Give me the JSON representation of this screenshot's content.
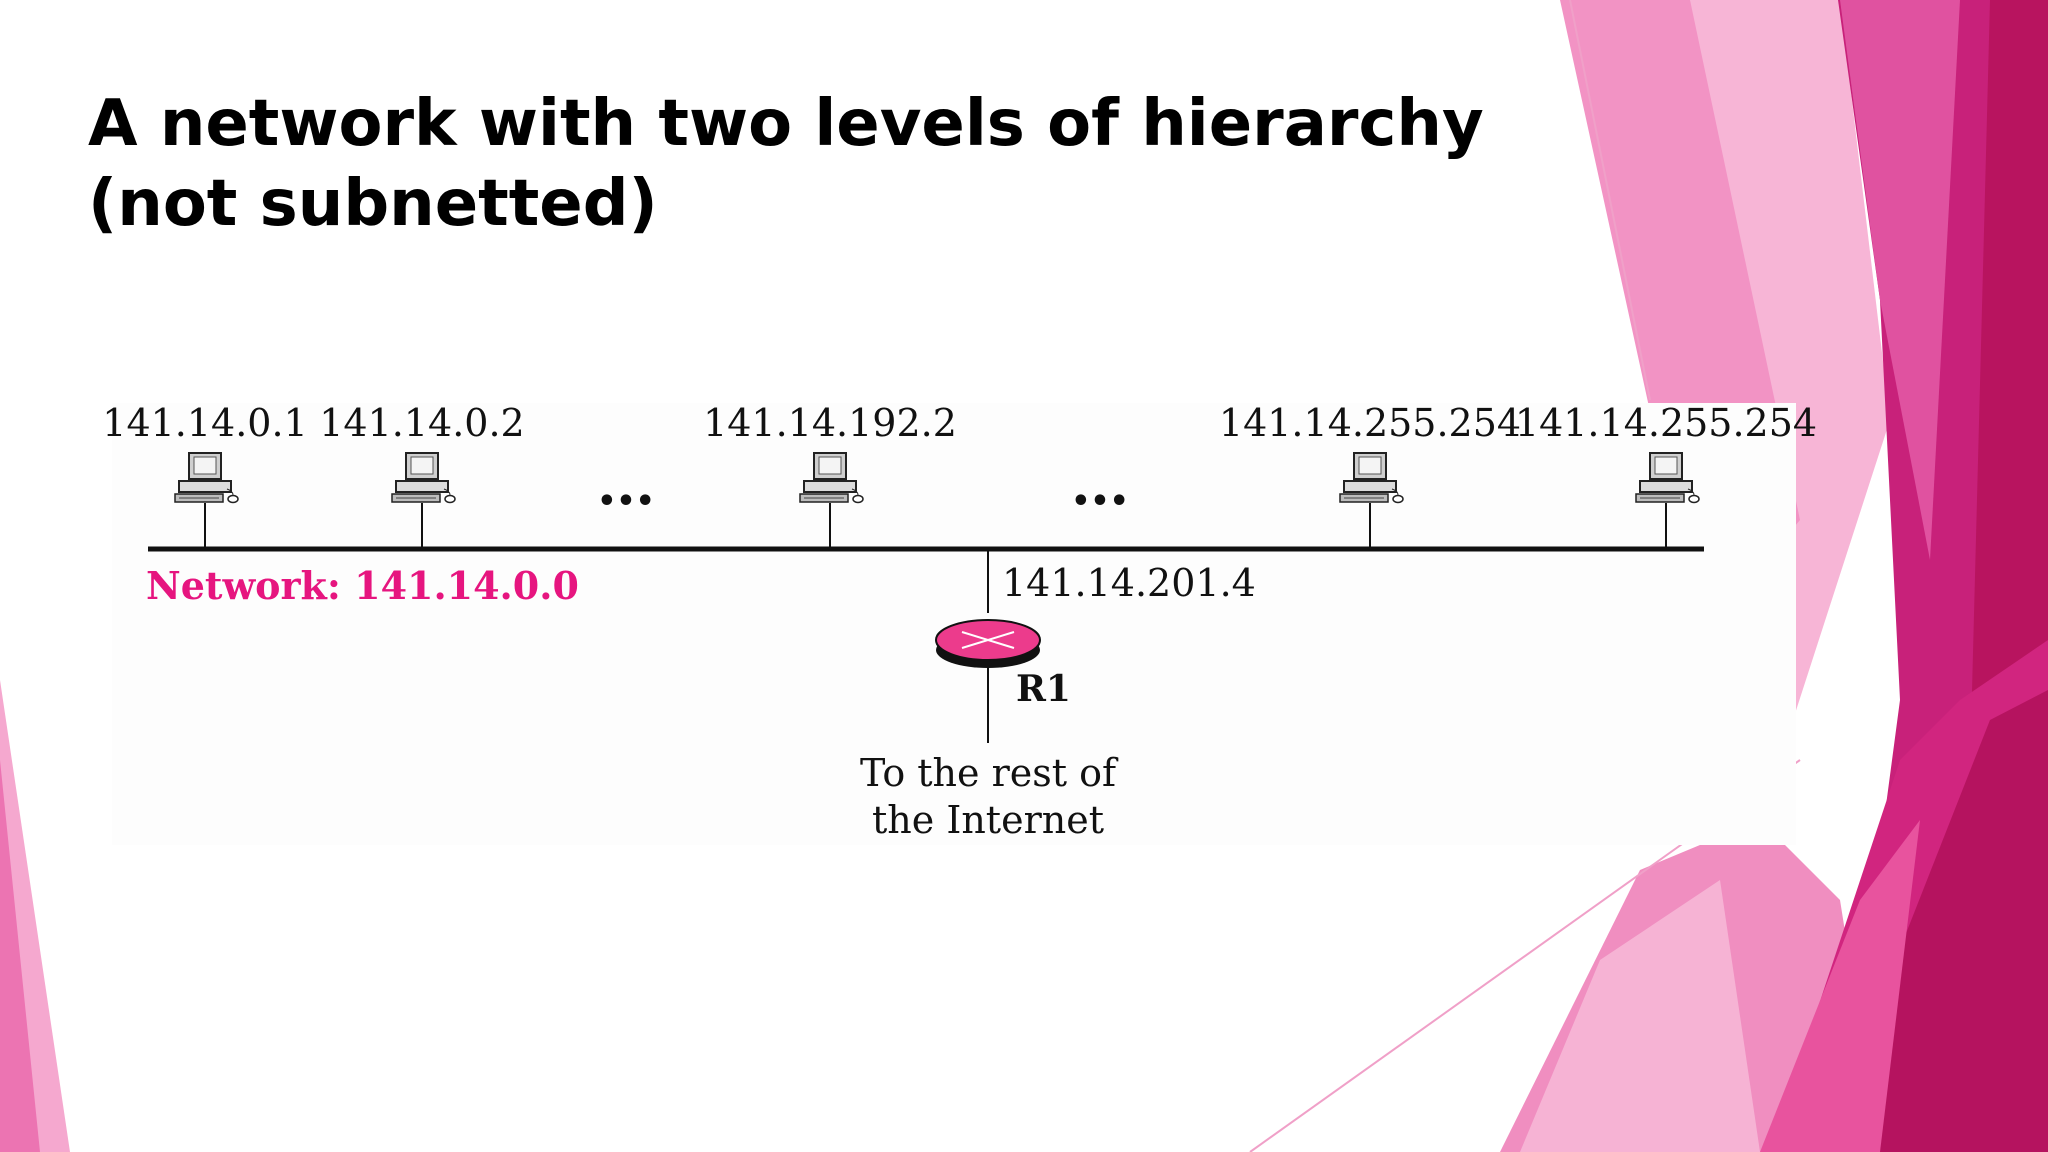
{
  "slide": {
    "title": "A network with two levels of hierarchy (not subnetted)"
  },
  "diagram": {
    "hosts": [
      {
        "address": "141.14.0.1",
        "icon": "computer-icon"
      },
      {
        "address": "141.14.0.2",
        "icon": "computer-icon"
      },
      {
        "address": "141.14.192.2",
        "icon": "computer-icon"
      },
      {
        "address": "141.14.255.254",
        "icon": "computer-icon"
      },
      {
        "address": "141.14.255.254",
        "icon": "computer-icon"
      }
    ],
    "ellipsis": [
      "•••",
      "•••"
    ],
    "network_label": "Network: 141.14.0.0",
    "router": {
      "name": "R1",
      "interface_address": "141.14.201.4",
      "icon": "router-icon"
    },
    "uplink_text_line1": "To the rest of",
    "uplink_text_line2": "the Internet"
  },
  "colors": {
    "accent": "#e6157f",
    "pink_light": "#f7b5d6",
    "pink_mid": "#f083bd",
    "magenta_dark": "#b5135f",
    "magenta": "#c8217a",
    "router_fill": "#ec3b8c"
  }
}
